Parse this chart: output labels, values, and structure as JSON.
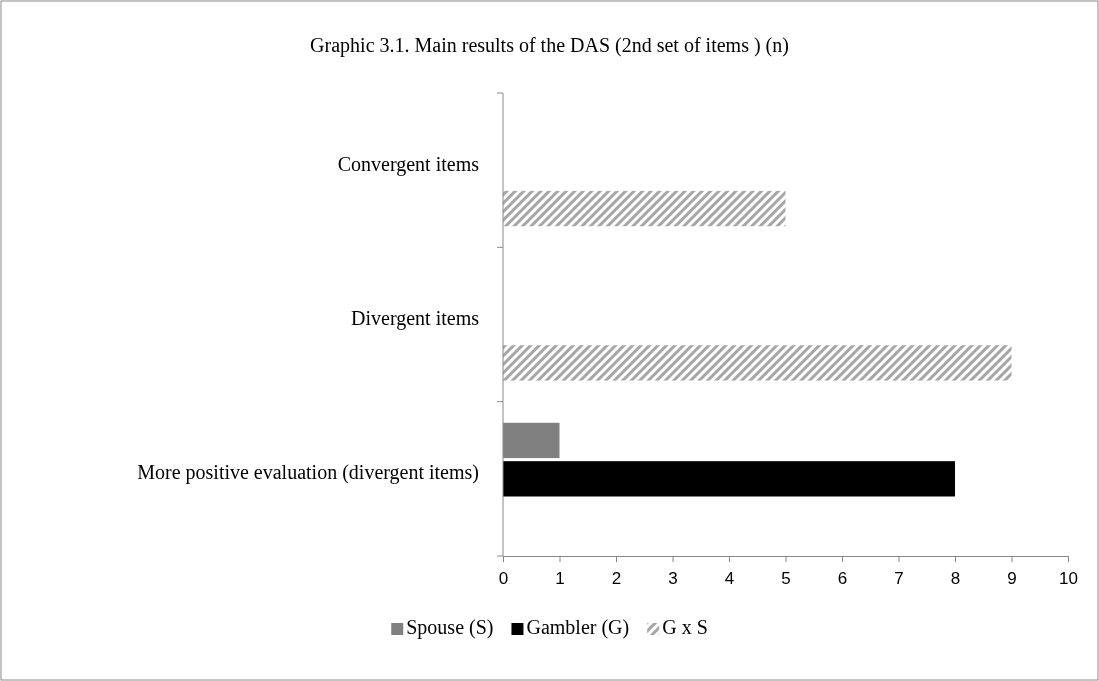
{
  "chart_data": {
    "type": "bar",
    "orientation": "horizontal",
    "title": "Graphic 3.1. Main results of the DAS (2nd set of items ) (n)",
    "categories": [
      "Convergent items",
      "Divergent items",
      "More positive evaluation (divergent items)"
    ],
    "series": [
      {
        "name": "Spouse (S)",
        "color": "#808080",
        "values": [
          null,
          null,
          1
        ]
      },
      {
        "name": "Gambler (G)",
        "color": "#000000",
        "values": [
          null,
          null,
          8
        ]
      },
      {
        "name": "G x S",
        "color": "#a6a6a6",
        "values": [
          5,
          9,
          null
        ]
      }
    ],
    "xlim": [
      0,
      10
    ],
    "xticks": [
      0,
      1,
      2,
      3,
      4,
      5,
      6,
      7,
      8,
      9,
      10
    ],
    "grid": false,
    "legend": "bottom"
  }
}
